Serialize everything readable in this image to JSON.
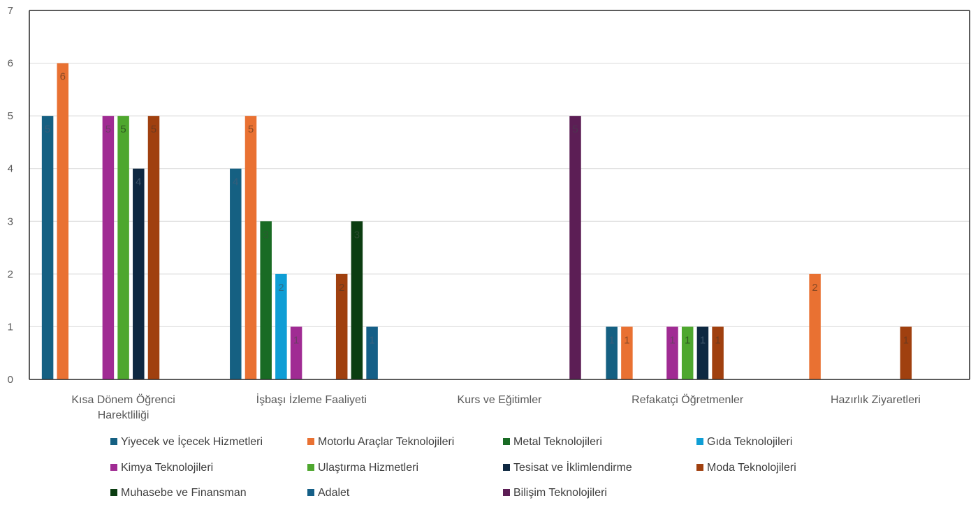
{
  "chart_data": {
    "type": "bar",
    "title": "",
    "xlabel": "",
    "ylabel": "",
    "ylim": [
      0,
      7
    ],
    "yticks": [
      0,
      1,
      2,
      3,
      4,
      5,
      6,
      7
    ],
    "grid": true,
    "legend_position": "bottom",
    "categories": [
      [
        "Kısa Dönem Öğrenci",
        "Harektliliği"
      ],
      [
        "İşbaşı İzleme Faaliyeti"
      ],
      [
        "Kurs ve Eğitimler"
      ],
      [
        "Refakatçi Öğretmenler"
      ],
      [
        "Hazırlık Ziyaretleri"
      ]
    ],
    "series": [
      {
        "name": "Yiyecek ve İçecek Hizmetleri",
        "color": "#156082",
        "labelColor": "#385d7a",
        "values": [
          5,
          4,
          null,
          1,
          null
        ]
      },
      {
        "name": "Motorlu Araçlar Teknolojileri",
        "color": "#e97132",
        "labelColor": "#8a4a25",
        "values": [
          6,
          5,
          null,
          1,
          2
        ]
      },
      {
        "name": "Metal Teknolojileri",
        "color": "#196b24",
        "labelColor": "#2b5a30",
        "values": [
          null,
          3,
          null,
          null,
          null
        ]
      },
      {
        "name": "Gıda Teknolojileri",
        "color": "#0f9ed5",
        "labelColor": "#2a6f8c",
        "values": [
          null,
          2,
          null,
          null,
          null
        ]
      },
      {
        "name": "Kimya Teknolojileri",
        "color": "#a02b93",
        "labelColor": "#6e3c68",
        "values": [
          5,
          1,
          null,
          1,
          null
        ]
      },
      {
        "name": "Ulaştırma Hizmetleri",
        "color": "#4ea72e",
        "labelColor": "#2f5a20",
        "values": [
          5,
          null,
          null,
          1,
          null
        ]
      },
      {
        "name": "Tesisat ve İklimlendirme",
        "color": "#0e2841",
        "labelColor": "#3b5268",
        "values": [
          4,
          null,
          null,
          1,
          null
        ]
      },
      {
        "name": "Moda Teknolojileri",
        "color": "#a0400f",
        "labelColor": "#6e3a1e",
        "values": [
          5,
          2,
          null,
          1,
          1
        ]
      },
      {
        "name": "Muhasebe ve Finansman",
        "color": "#0b3d11",
        "labelColor": "#2b4a2e",
        "values": [
          null,
          3,
          null,
          null,
          null
        ]
      },
      {
        "name": "Adalet",
        "color": "#155f87",
        "labelColor": "#3a6280",
        "values": [
          null,
          1,
          null,
          null,
          null
        ]
      },
      {
        "name": "Bilişim Teknolojileri",
        "color": "#5c1e55",
        "labelColor": "#4e3350",
        "values": [
          null,
          null,
          5,
          null,
          null
        ]
      }
    ]
  }
}
